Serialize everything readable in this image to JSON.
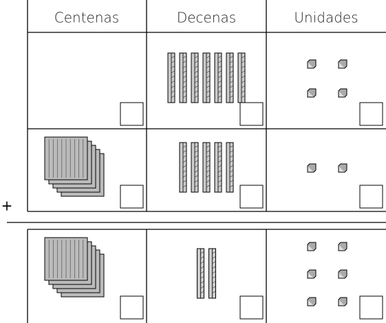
{
  "table": {
    "headers": [
      "Centenas",
      "Decenas",
      "Unidades"
    ],
    "rows": [
      [
        0,
        7,
        4
      ],
      [
        5,
        5,
        2
      ],
      [
        5,
        2,
        6
      ]
    ]
  },
  "operator": "+"
}
